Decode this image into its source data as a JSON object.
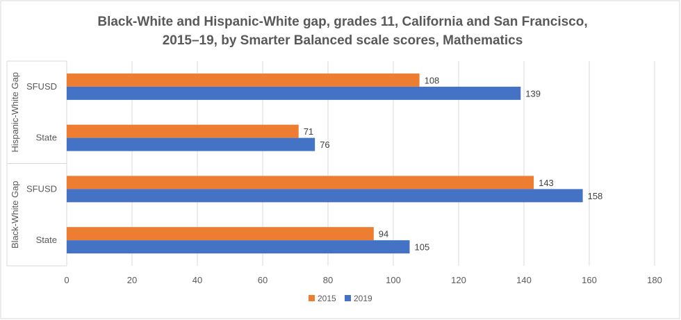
{
  "chart_data": {
    "type": "bar",
    "orientation": "horizontal",
    "title_lines": [
      "Black-White and Hispanic-White gap, grades 11, California and San Francisco,",
      "2015–19, by Smarter Balanced scale scores, Mathematics"
    ],
    "groups": [
      {
        "name": "Hispanic-White Gap",
        "categories": [
          "SFUSD",
          "State"
        ]
      },
      {
        "name": "Black-White Gap",
        "categories": [
          "SFUSD",
          "State"
        ]
      }
    ],
    "series": [
      {
        "name": "2015",
        "color": "#ED7D31",
        "values": [
          108,
          71,
          143,
          94
        ]
      },
      {
        "name": "2019",
        "color": "#4472C4",
        "values": [
          139,
          76,
          158,
          105
        ]
      }
    ],
    "xlim": [
      0,
      180
    ],
    "xticks": [
      0,
      20,
      40,
      60,
      80,
      100,
      120,
      140,
      160,
      180
    ],
    "grid": true,
    "legend_position": "bottom"
  }
}
